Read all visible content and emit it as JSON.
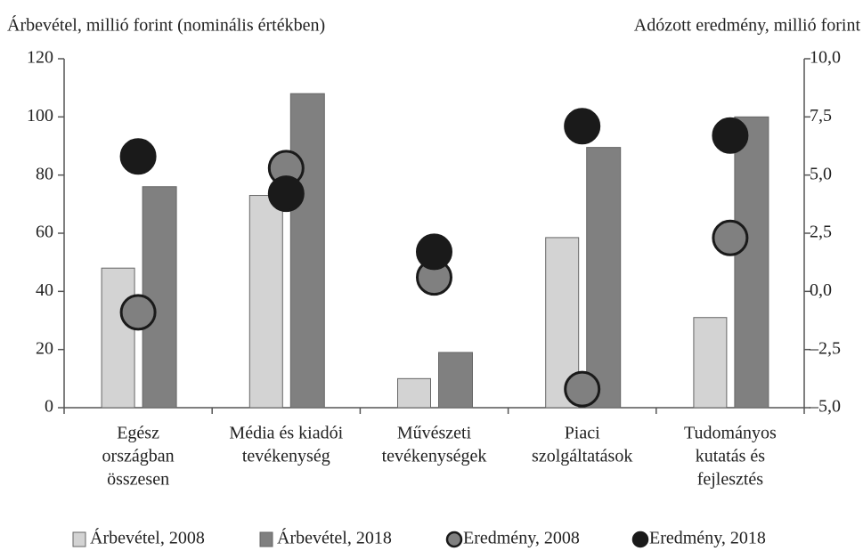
{
  "chart_data": {
    "type": "bar_scatter",
    "y_label": "Árbevétel, millió forint (nominális értékben)",
    "y2_label": "Adózott eredmény, millió forint",
    "categories": [
      [
        "Egész",
        "országban",
        "összesen"
      ],
      [
        "Média és kiadói",
        "tevékenység"
      ],
      [
        "Művészeti",
        "tevékenységek"
      ],
      [
        "Piaci",
        "szolgáltatások"
      ],
      [
        "Tudományos",
        "kutatás és",
        "fejlesztés"
      ]
    ],
    "series": [
      {
        "name": "Árbevétel, 2008",
        "type": "bar",
        "color": "#d3d3d3",
        "values": [
          48,
          73,
          10,
          58.5,
          31
        ]
      },
      {
        "name": "Árbevétel, 2018",
        "type": "bar",
        "color": "#808080",
        "values": [
          76,
          108,
          19,
          89.5,
          100
        ]
      },
      {
        "name": "Eredmény, 2008",
        "type": "scatter",
        "axis": "y2",
        "color": "#808080",
        "values": [
          -0.9,
          5.3,
          0.6,
          -4.2,
          2.3
        ]
      },
      {
        "name": "Eredmény, 2018",
        "type": "scatter",
        "axis": "y2",
        "color": "#1a1a1a",
        "values": [
          5.8,
          4.2,
          1.7,
          7.1,
          6.7
        ]
      }
    ],
    "ylim": [
      0,
      120
    ],
    "yticks": [
      0,
      20,
      40,
      60,
      80,
      100,
      120
    ],
    "y2lim": [
      -5,
      10
    ],
    "y2ticks": [
      {
        "value": -5,
        "label": "–5,0"
      },
      {
        "value": -2.5,
        "label": "–2,5"
      },
      {
        "value": 0,
        "label": "0,0"
      },
      {
        "value": 2.5,
        "label": "2,5"
      },
      {
        "value": 5,
        "label": "5,0"
      },
      {
        "value": 7.5,
        "label": "7,5"
      },
      {
        "value": 10,
        "label": "10,0"
      }
    ],
    "grid": false,
    "legend": "bottom"
  }
}
